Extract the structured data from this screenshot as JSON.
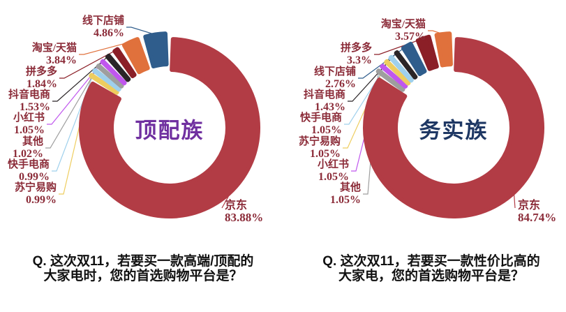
{
  "background_color": "#ffffff",
  "label_text_color": "#8B2B38",
  "chart_data": [
    {
      "type": "pie",
      "subtype": "donut",
      "center_label": "顶配族",
      "center_label_color": "#7030A0",
      "question_line1": "Q. 这次双11，若要买一款高端/顶配的",
      "question_line2": "大家电时，您的首选购物平台是？",
      "legend_position": "none",
      "slices": [
        {
          "name": "京东",
          "value": 83.88,
          "label": "83.88%",
          "color": "#B23C45"
        },
        {
          "name": "苏宁易购",
          "value": 0.99,
          "label": "0.99%",
          "color": "#EECD5F"
        },
        {
          "name": "快手电商",
          "value": 0.99,
          "label": "0.99%",
          "color": "#9FD0EC"
        },
        {
          "name": "其他",
          "value": 1.02,
          "label": "1.02%",
          "color": "#9E9E9E"
        },
        {
          "name": "小红书",
          "value": 1.05,
          "label": "1.05%",
          "color": "#C057EE"
        },
        {
          "name": "抖音电商",
          "value": 1.53,
          "label": "1.53%",
          "color": "#2A2527"
        },
        {
          "name": "拼多多",
          "value": 1.84,
          "label": "1.84%",
          "color": "#8B1F27"
        },
        {
          "name": "淘宝/天猫",
          "value": 3.84,
          "label": "3.84%",
          "color": "#E0713C"
        },
        {
          "name": "线下店铺",
          "value": 4.86,
          "label": "4.86%",
          "color": "#2F5D8C"
        }
      ]
    },
    {
      "type": "pie",
      "subtype": "donut",
      "center_label": "务实族",
      "center_label_color": "#1F3864",
      "question_line1": "Q. 这次双11，若要买一款性价比高的",
      "question_line2": "大家电，您的首选购物平台是？",
      "legend_position": "none",
      "slices": [
        {
          "name": "京东",
          "value": 84.74,
          "label": "84.74%",
          "color": "#B23C45"
        },
        {
          "name": "其他",
          "value": 1.05,
          "label": "1.05%",
          "color": "#9E9E9E"
        },
        {
          "name": "小红书",
          "value": 1.05,
          "label": "1.05%",
          "color": "#C057EE"
        },
        {
          "name": "苏宁易购",
          "value": 1.05,
          "label": "1.05%",
          "color": "#EECD5F"
        },
        {
          "name": "快手电商",
          "value": 1.05,
          "label": "1.05%",
          "color": "#9FD0EC"
        },
        {
          "name": "抖音电商",
          "value": 1.43,
          "label": "1.43%",
          "color": "#2A2527"
        },
        {
          "name": "线下店铺",
          "value": 2.76,
          "label": "2.76%",
          "color": "#2F5D8C"
        },
        {
          "name": "拼多多",
          "value": 3.3,
          "label": "3.3%",
          "color": "#8B1F27"
        },
        {
          "name": "淘宝/天猫",
          "value": 3.57,
          "label": "3.57%",
          "color": "#E0713C"
        }
      ]
    }
  ]
}
